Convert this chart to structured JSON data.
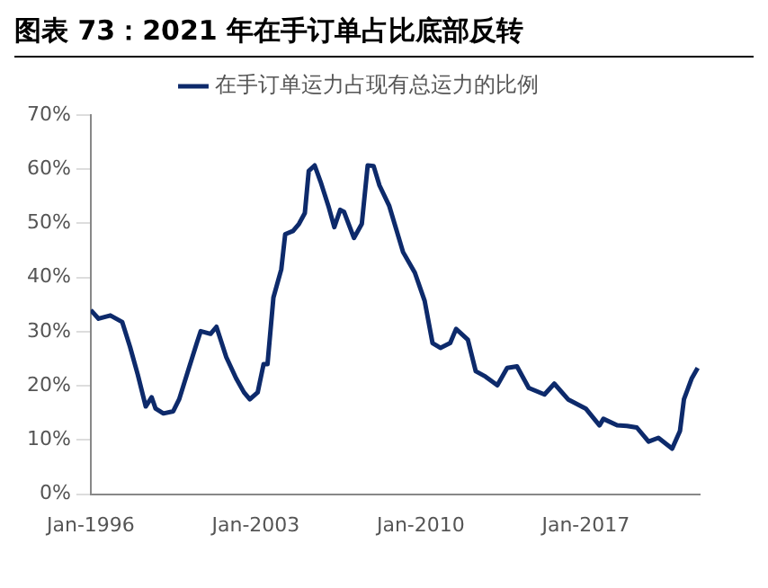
{
  "chart_data": {
    "type": "line",
    "title": "图表 73：2021 年在手订单占比底部反转",
    "legend": "top",
    "grid": false,
    "marker": "none",
    "line_style": "solid",
    "xlim": [
      "1996-01",
      "2021-11"
    ],
    "xticks": [
      {
        "value": "1996-01",
        "label": "Jan-1996"
      },
      {
        "value": "2003-01",
        "label": "Jan-2003"
      },
      {
        "value": "2010-01",
        "label": "Jan-2010"
      },
      {
        "value": "2017-01",
        "label": "Jan-2017"
      }
    ],
    "ylim": [
      0,
      70
    ],
    "yticks": [
      {
        "value": 0,
        "label": "0%"
      },
      {
        "value": 10,
        "label": "10%"
      },
      {
        "value": 20,
        "label": "20%"
      },
      {
        "value": 30,
        "label": "30%"
      },
      {
        "value": 40,
        "label": "40%"
      },
      {
        "value": 50,
        "label": "50%"
      },
      {
        "value": 60,
        "label": "60%"
      },
      {
        "value": 70,
        "label": "70%"
      }
    ],
    "series": [
      {
        "name": "在手订单运力占现有总运力的比例",
        "color": "#0d2a6b",
        "x": [
          "1996-01",
          "1996-05",
          "1996-11",
          "1997-05",
          "1997-09",
          "1998-01",
          "1998-05",
          "1998-08",
          "1998-10",
          "1999-02",
          "1999-07",
          "1999-10",
          "2000-03",
          "2000-07",
          "2000-09",
          "2001-02",
          "2001-05",
          "2001-10",
          "2002-03",
          "2002-07",
          "2002-10",
          "2003-02",
          "2003-05",
          "2003-07",
          "2003-10",
          "2004-02",
          "2004-04",
          "2004-08",
          "2004-11",
          "2005-02",
          "2005-04",
          "2005-07",
          "2005-10",
          "2006-02",
          "2006-05",
          "2006-08",
          "2006-10",
          "2007-03",
          "2007-07",
          "2007-10",
          "2008-01",
          "2008-04",
          "2008-09",
          "2009-04",
          "2009-10",
          "2010-03",
          "2010-07",
          "2010-11",
          "2011-04",
          "2011-07",
          "2012-01",
          "2012-05",
          "2012-10",
          "2013-04",
          "2013-09",
          "2014-02",
          "2014-08",
          "2015-04",
          "2015-09",
          "2016-04",
          "2017-01",
          "2017-08",
          "2017-10",
          "2018-05",
          "2018-10",
          "2019-03",
          "2019-09",
          "2020-02",
          "2020-09",
          "2021-01",
          "2021-03",
          "2021-07",
          "2021-10"
        ],
        "values": [
          34,
          32.4,
          33,
          31.8,
          27.2,
          22,
          16.2,
          17.9,
          15.8,
          14.9,
          15.3,
          17.5,
          23.3,
          27.9,
          30.1,
          29.6,
          30.9,
          25.3,
          21.4,
          18.8,
          17.5,
          18.8,
          24,
          24,
          36.3,
          41.5,
          48,
          48.6,
          49.9,
          51.9,
          59.7,
          60.7,
          57.7,
          53.2,
          49.3,
          52.5,
          52.1,
          47.3,
          49.9,
          60.7,
          60.6,
          57,
          53.2,
          44.7,
          40.9,
          35.7,
          27.9,
          27,
          27.9,
          30.5,
          28.5,
          22.7,
          21.7,
          20.1,
          23.3,
          23.6,
          19.6,
          18.4,
          20.4,
          17.5,
          15.8,
          12.7,
          13.9,
          12.7,
          12.6,
          12.3,
          9.7,
          10.4,
          8.4,
          11.7,
          17.5,
          21.4,
          23.3
        ]
      }
    ]
  }
}
